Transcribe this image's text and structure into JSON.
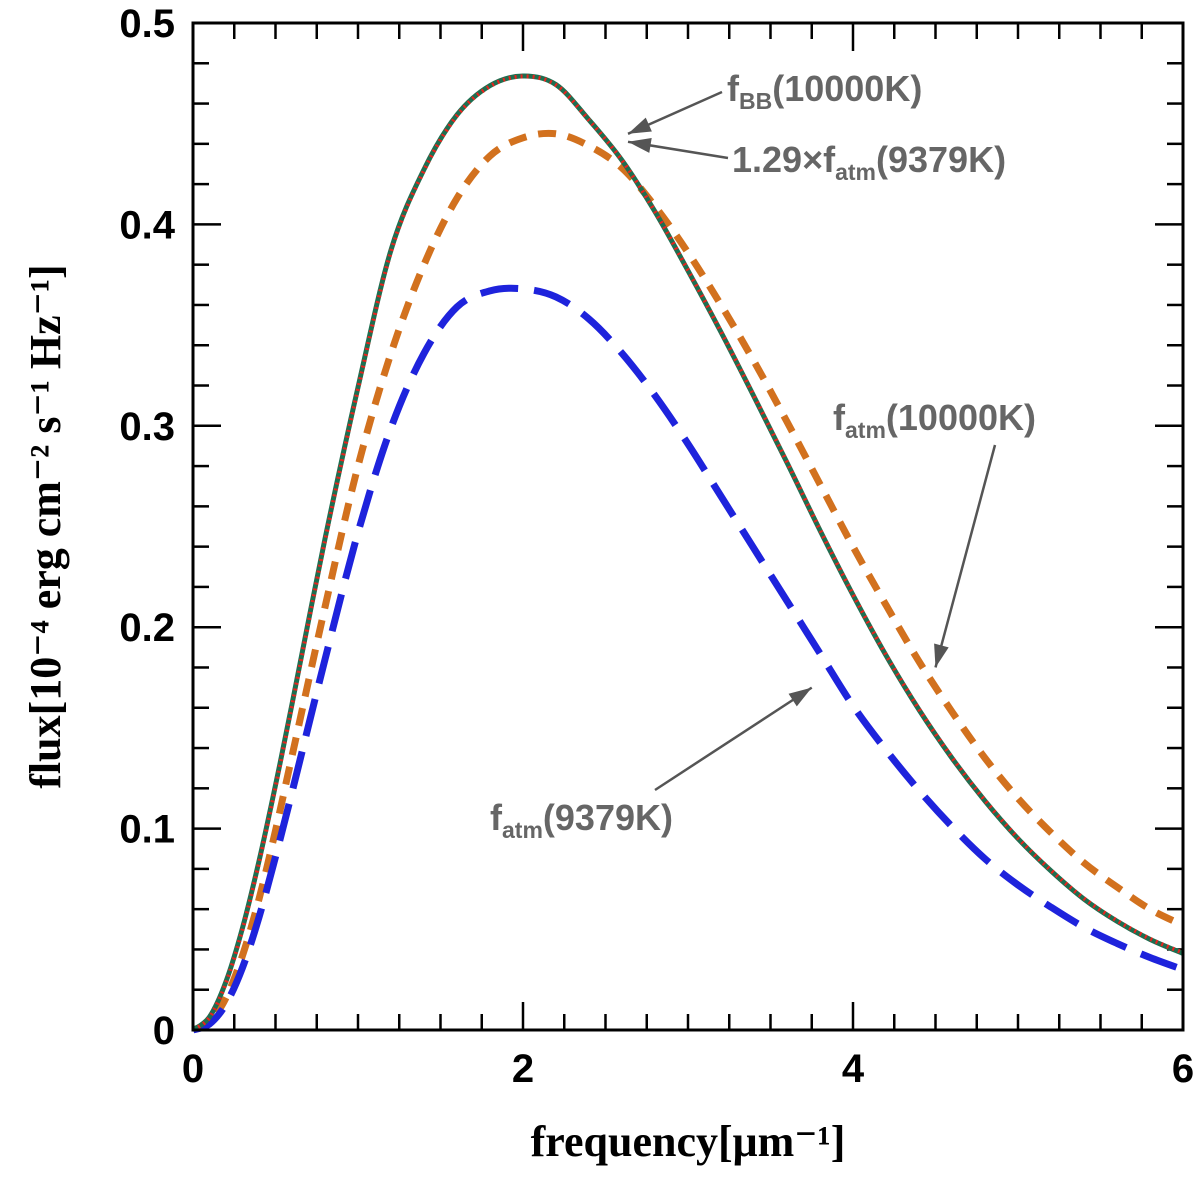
{
  "chart_data": {
    "type": "line",
    "title": "",
    "xlabel": "frequency[μm⁻¹]",
    "ylabel": "flux[10⁻⁴ erg cm⁻² s⁻¹ Hz⁻¹]",
    "xlim": [
      0,
      6
    ],
    "ylim": [
      0,
      0.5
    ],
    "xticks": [
      0,
      2,
      4,
      6
    ],
    "xtick_labels": [
      "0",
      "2",
      "4",
      "6"
    ],
    "yticks": [
      0,
      0.1,
      0.2,
      0.3,
      0.4,
      0.5
    ],
    "ytick_labels": [
      "0",
      "0.1",
      "0.2",
      "0.3",
      "0.4",
      "0.5"
    ],
    "grid": false,
    "series": [
      {
        "name": "f_BB(10000K)",
        "style": "solid",
        "color": "#1e6e50",
        "x": [
          0,
          0.1,
          0.2,
          0.3,
          0.4,
          0.5,
          0.6,
          0.8,
          1.0,
          1.2,
          1.4,
          1.6,
          1.8,
          2.0,
          2.2,
          2.4,
          2.6,
          2.8,
          3.0,
          3.2,
          3.4,
          3.6,
          3.8,
          4.0,
          4.2,
          4.4,
          4.6,
          4.8,
          5.0,
          5.2,
          5.4,
          5.6,
          5.8,
          6.0
        ],
        "y": [
          0,
          0.0065,
          0.0241,
          0.0507,
          0.0839,
          0.1216,
          0.1618,
          0.2439,
          0.3191,
          0.3873,
          0.4273,
          0.4544,
          0.4689,
          0.4737,
          0.4694,
          0.4519,
          0.4318,
          0.4063,
          0.377,
          0.3465,
          0.3145,
          0.2817,
          0.2481,
          0.216,
          0.186,
          0.159,
          0.135,
          0.1137,
          0.095,
          0.079,
          0.065,
          0.054,
          0.045,
          0.038
        ]
      },
      {
        "name": "1.29×f_atm(9379K)",
        "style": "dotted",
        "color": "#e8231e",
        "x": [
          0,
          0.1,
          0.2,
          0.3,
          0.4,
          0.5,
          0.6,
          0.8,
          1.0,
          1.2,
          1.4,
          1.6,
          1.8,
          2.0,
          2.2,
          2.4,
          2.6,
          2.8,
          3.0,
          3.2,
          3.4,
          3.6,
          3.8,
          4.0,
          4.2,
          4.4,
          4.6,
          4.8,
          5.0,
          5.2,
          5.4,
          5.6,
          5.8,
          6.0
        ],
        "y": [
          0,
          0.0062,
          0.0235,
          0.05,
          0.083,
          0.1207,
          0.161,
          0.243,
          0.3183,
          0.3865,
          0.4268,
          0.454,
          0.4686,
          0.4735,
          0.4692,
          0.4518,
          0.4318,
          0.4064,
          0.3772,
          0.3468,
          0.3148,
          0.282,
          0.2484,
          0.2163,
          0.1863,
          0.1593,
          0.1353,
          0.114,
          0.0953,
          0.0793,
          0.0653,
          0.0543,
          0.0453,
          0.0383
        ]
      },
      {
        "name": "f_atm(10000K)",
        "style": "short-dash",
        "color": "#d2711e",
        "x": [
          0,
          0.1,
          0.2,
          0.3,
          0.4,
          0.5,
          0.6,
          0.8,
          1.0,
          1.2,
          1.4,
          1.6,
          1.8,
          2.0,
          2.2,
          2.4,
          2.6,
          2.8,
          3.0,
          3.2,
          3.4,
          3.6,
          3.8,
          4.0,
          4.2,
          4.4,
          4.6,
          4.8,
          5.0,
          5.2,
          5.4,
          5.6,
          5.8,
          6.0
        ],
        "y": [
          0,
          0.004,
          0.016,
          0.037,
          0.065,
          0.099,
          0.136,
          0.21,
          0.28,
          0.336,
          0.38,
          0.413,
          0.434,
          0.443,
          0.445,
          0.439,
          0.428,
          0.409,
          0.386,
          0.36,
          0.332,
          0.302,
          0.271,
          0.24,
          0.211,
          0.183,
          0.158,
          0.135,
          0.115,
          0.098,
          0.083,
          0.071,
          0.06,
          0.052
        ]
      },
      {
        "name": "f_atm(9379K)",
        "style": "long-dash",
        "color": "#1e23dc",
        "x": [
          0,
          0.1,
          0.2,
          0.3,
          0.4,
          0.5,
          0.6,
          0.8,
          1.0,
          1.2,
          1.4,
          1.6,
          1.8,
          2.0,
          2.2,
          2.4,
          2.6,
          2.8,
          3.0,
          3.2,
          3.4,
          3.6,
          3.8,
          4.0,
          4.2,
          4.4,
          4.6,
          4.8,
          5.0,
          5.2,
          5.4,
          5.6,
          5.8,
          6.0
        ],
        "y": [
          0,
          0.003,
          0.013,
          0.031,
          0.056,
          0.086,
          0.118,
          0.184,
          0.247,
          0.299,
          0.336,
          0.359,
          0.367,
          0.368,
          0.364,
          0.353,
          0.336,
          0.315,
          0.291,
          0.265,
          0.239,
          0.213,
          0.187,
          0.161,
          0.139,
          0.119,
          0.101,
          0.085,
          0.072,
          0.061,
          0.051,
          0.043,
          0.036,
          0.03
        ]
      }
    ],
    "annotations": [
      {
        "id": "bb",
        "base": "f",
        "sub": "BB",
        "post": "(10000K)",
        "points_to": [
          2.6,
          0.443
        ]
      },
      {
        "id": "scaled",
        "pre": "1.29×",
        "base": "f",
        "sub": "atm",
        "post": "(9379K)",
        "points_to": [
          2.6,
          0.442
        ]
      },
      {
        "id": "atm10000",
        "base": "f",
        "sub": "atm",
        "post": "(10000K)",
        "points_to": [
          4.5,
          0.18
        ]
      },
      {
        "id": "atm9379",
        "base": "f",
        "sub": "atm",
        "post": "(9379K)",
        "points_to": [
          3.75,
          0.17
        ]
      }
    ]
  }
}
